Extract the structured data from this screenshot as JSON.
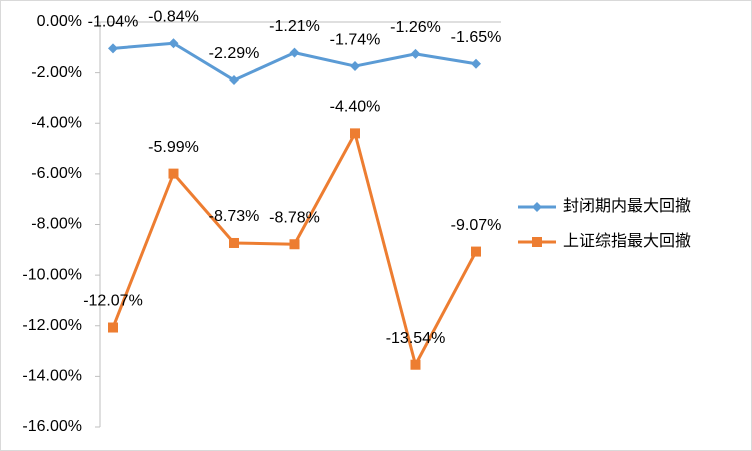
{
  "chart_data": {
    "type": "line",
    "categories": [
      null,
      null,
      null,
      null,
      null,
      null,
      null
    ],
    "series": [
      {
        "name": "封闭期内最大回撤",
        "color": "#5b9bd5",
        "marker": "diamond",
        "values": [
          -1.04,
          -0.84,
          -2.29,
          -1.21,
          -1.74,
          -1.26,
          -1.65
        ],
        "value_labels": [
          "-1.04%",
          "-0.84%",
          "-2.29%",
          "-1.21%",
          "-1.74%",
          "-1.26%",
          "-1.65%"
        ]
      },
      {
        "name": "上证综指最大回撤",
        "color": "#ed7d31",
        "marker": "square",
        "values": [
          -12.07,
          -5.99,
          -8.73,
          -8.78,
          -4.4,
          -13.54,
          -9.07
        ],
        "value_labels": [
          "-12.07%",
          "-5.99%",
          "-8.73%",
          "-8.78%",
          "-4.40%",
          "-13.54%",
          "-9.07%"
        ]
      }
    ],
    "ylim": [
      -16,
      0
    ],
    "yticks": [
      {
        "value": 0,
        "label": "0.00%"
      },
      {
        "value": -2,
        "label": "-2.00%"
      },
      {
        "value": -4,
        "label": "-4.00%"
      },
      {
        "value": -6,
        "label": "-6.00%"
      },
      {
        "value": -8,
        "label": "-8.00%"
      },
      {
        "value": -10,
        "label": "-10.00%"
      },
      {
        "value": -12,
        "label": "-12.00%"
      },
      {
        "value": -14,
        "label": "-14.00%"
      },
      {
        "value": -16,
        "label": "-16.00%"
      }
    ],
    "legend": "right",
    "grid": false
  }
}
